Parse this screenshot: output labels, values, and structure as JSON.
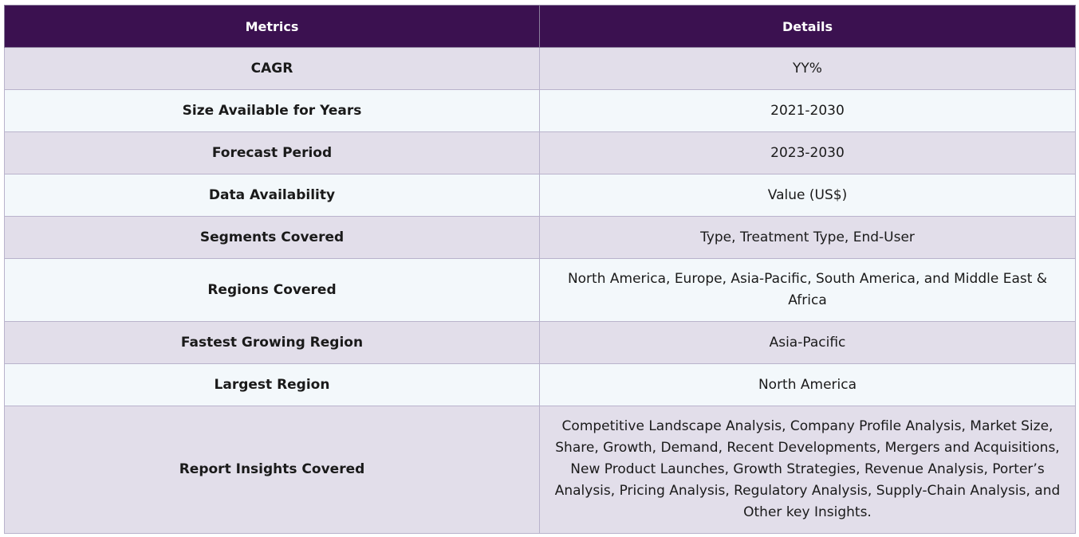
{
  "table": {
    "headers": {
      "metrics": "Metrics",
      "details": "Details"
    },
    "rows": [
      {
        "metric": "CAGR",
        "detail": "YY%"
      },
      {
        "metric": "Size Available for Years",
        "detail": "2021-2030"
      },
      {
        "metric": "Forecast Period",
        "detail": "2023-2030"
      },
      {
        "metric": "Data Availability",
        "detail": "Value (US$)"
      },
      {
        "metric": "Segments Covered",
        "detail": "Type, Treatment Type, End-User"
      },
      {
        "metric": "Regions Covered",
        "detail": "North America, Europe, Asia-Pacific, South America, and Middle East & Africa"
      },
      {
        "metric": "Fastest Growing Region",
        "detail": "Asia-Pacific"
      },
      {
        "metric": "Largest Region",
        "detail": "North America"
      },
      {
        "metric": "Report Insights Covered",
        "detail": "Competitive Landscape Analysis, Company Profile Analysis, Market Size, Share, Growth, Demand, Recent Developments, Mergers and Acquisitions, New Product Launches, Growth Strategies, Revenue Analysis, Porter’s Analysis, Pricing Analysis, Regulatory Analysis, Supply-Chain Analysis, and Other key Insights."
      }
    ]
  },
  "colors": {
    "header_bg": "#3b1150",
    "row_alt_1": "#e2deea",
    "row_alt_2": "#f3f8fb",
    "border": "#b9b3cc"
  }
}
